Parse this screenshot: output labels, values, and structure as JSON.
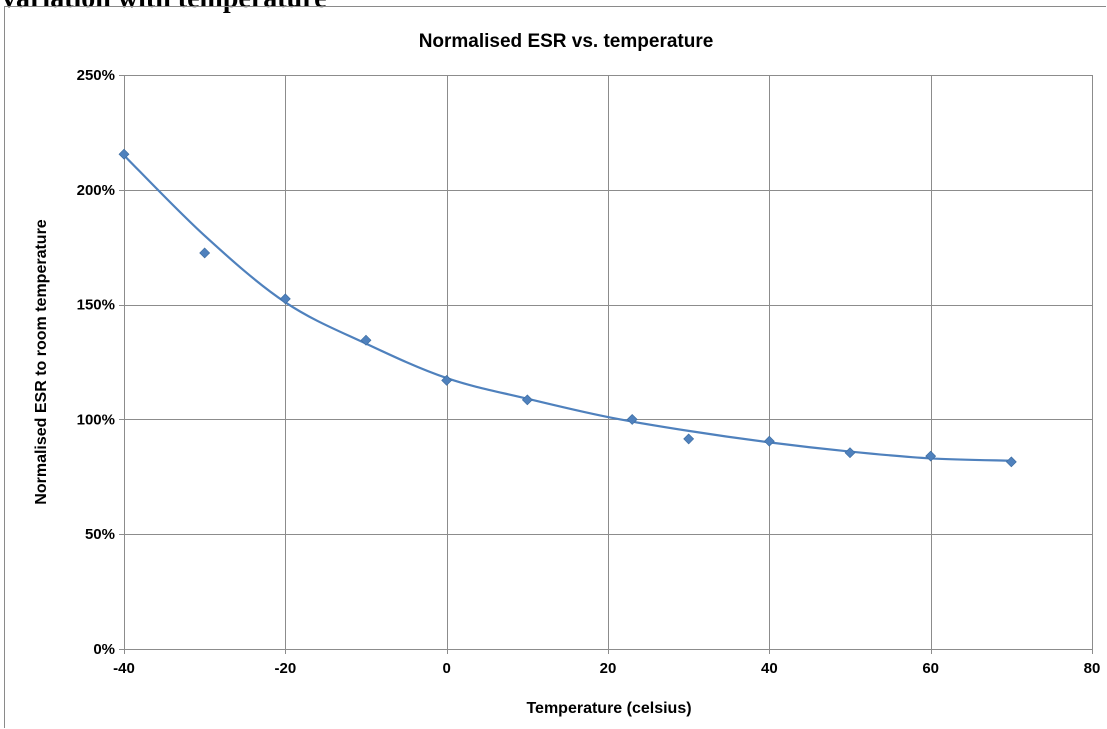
{
  "heading": {
    "text": "variation with temperature"
  },
  "chart_data": {
    "type": "scatter",
    "title": "Normalised ESR vs. temperature",
    "xlabel": "Temperature (celsius)",
    "ylabel": "Normalised ESR to room temperature",
    "xlim": [
      -40,
      80
    ],
    "ylim": [
      0,
      250
    ],
    "x_ticks": [
      -40,
      -20,
      0,
      20,
      40,
      60,
      80
    ],
    "x_tick_labels": [
      "-40",
      "-20",
      "0",
      "20",
      "40",
      "60",
      "80"
    ],
    "y_ticks": [
      0,
      50,
      100,
      150,
      200,
      250
    ],
    "y_tick_labels": [
      "0%",
      "50%",
      "100%",
      "150%",
      "200%",
      "250%"
    ],
    "y_unit": "percent",
    "grid": true,
    "marker": "diamond",
    "trendline": "smooth",
    "series": [
      {
        "color": "#4f81bd",
        "x": [
          -40,
          -30,
          -20,
          -10,
          0,
          10,
          23,
          30,
          40,
          50,
          60,
          70
        ],
        "y": [
          215.5,
          172.5,
          152.5,
          134.5,
          117,
          108.5,
          100,
          91.5,
          90.5,
          85.5,
          84,
          81.5
        ]
      }
    ],
    "trend": {
      "color": "#4f81bd",
      "x": [
        -40,
        -30,
        -20,
        -10,
        0,
        10,
        20,
        30,
        40,
        50,
        60,
        70
      ],
      "y": [
        215,
        180,
        151,
        133,
        118,
        109,
        101,
        95,
        90,
        86,
        83,
        82
      ]
    }
  }
}
